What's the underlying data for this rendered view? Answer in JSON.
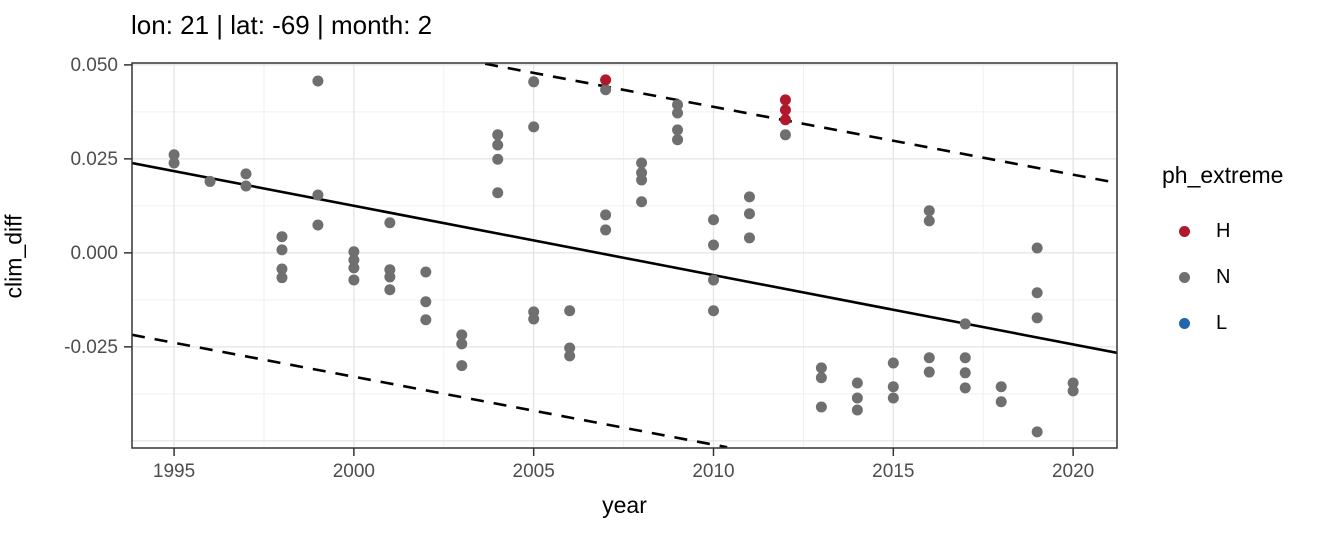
{
  "chart_data": {
    "type": "scatter",
    "title": "lon: 21 | lat: -69 | month: 2",
    "xlabel": "year",
    "ylabel": "clim_diff",
    "xlim": [
      1993.83,
      2021.22
    ],
    "ylim": [
      -0.0519,
      0.0505
    ],
    "x_ticks": [
      1995,
      2000,
      2005,
      2010,
      2015,
      2020
    ],
    "x_minor_ticks": [
      1997.5,
      2002.5,
      2007.5,
      2012.5,
      2017.5
    ],
    "y_ticks": [
      0.05,
      0.025,
      0.0,
      -0.025
    ],
    "y_tick_labels": [
      "0.050",
      "0.025",
      "0.000",
      "-0.025"
    ],
    "y_grid_major": [
      0.05,
      0.025,
      0.0,
      -0.025,
      -0.05
    ],
    "y_grid_minor": [
      0.0375,
      0.0125,
      -0.0125,
      -0.0375
    ],
    "grid": "on",
    "colors": {
      "H": "#B2182B",
      "N": "#6F6F6F",
      "L": "#2166AC",
      "axis_text": "#4D4D4D",
      "panel_border": "#333333",
      "grid_major": "#E4E4E4",
      "grid_minor": "#F1F1F1",
      "line": "#000000"
    },
    "legend": {
      "title": "ph_extreme",
      "position": "right",
      "entries": [
        {
          "label": "H",
          "color": "#B2182B"
        },
        {
          "label": "N",
          "color": "#6F6F6F"
        },
        {
          "label": "L",
          "color": "#2166AC"
        }
      ]
    },
    "series": [
      {
        "name": "H",
        "color": "#B2182B",
        "points": [
          [
            2007,
            0.046
          ],
          [
            2012,
            0.0407
          ],
          [
            2012,
            0.038
          ],
          [
            2012,
            0.0354
          ]
        ]
      },
      {
        "name": "N",
        "color": "#6F6F6F",
        "points": [
          [
            1995,
            0.0261
          ],
          [
            1995,
            0.0239
          ],
          [
            1996,
            0.019
          ],
          [
            1997,
            0.021
          ],
          [
            1997,
            0.0178
          ],
          [
            1998,
            0.0043
          ],
          [
            1998,
            0.0008
          ],
          [
            1998,
            -0.0043
          ],
          [
            1998,
            -0.0066
          ],
          [
            1999,
            0.0457
          ],
          [
            1999,
            0.0154
          ],
          [
            1999,
            0.0074
          ],
          [
            2000,
            0.0003
          ],
          [
            2000,
            -0.0019
          ],
          [
            2000,
            -0.004
          ],
          [
            2000,
            -0.0072
          ],
          [
            2001,
            0.008
          ],
          [
            2001,
            -0.0045
          ],
          [
            2001,
            -0.0064
          ],
          [
            2001,
            -0.0098
          ],
          [
            2002,
            -0.0051
          ],
          [
            2002,
            -0.013
          ],
          [
            2002,
            -0.0178
          ],
          [
            2003,
            -0.0218
          ],
          [
            2003,
            -0.0242
          ],
          [
            2003,
            -0.03
          ],
          [
            2004,
            0.0314
          ],
          [
            2004,
            0.0287
          ],
          [
            2004,
            0.0249
          ],
          [
            2004,
            0.016
          ],
          [
            2005,
            0.0455
          ],
          [
            2005,
            0.0335
          ],
          [
            2005,
            -0.0157
          ],
          [
            2005,
            -0.0176
          ],
          [
            2006,
            -0.0154
          ],
          [
            2006,
            -0.0253
          ],
          [
            2006,
            -0.0274
          ],
          [
            2007,
            0.0434
          ],
          [
            2007,
            0.0101
          ],
          [
            2007,
            0.0061
          ],
          [
            2008,
            0.0239
          ],
          [
            2008,
            0.0213
          ],
          [
            2008,
            0.0194
          ],
          [
            2008,
            0.0136
          ],
          [
            2009,
            0.0394
          ],
          [
            2009,
            0.0372
          ],
          [
            2009,
            0.0327
          ],
          [
            2009,
            0.0301
          ],
          [
            2010,
            0.0088
          ],
          [
            2010,
            0.0021
          ],
          [
            2010,
            -0.0072
          ],
          [
            2010,
            -0.0154
          ],
          [
            2011,
            0.0149
          ],
          [
            2011,
            0.0104
          ],
          [
            2011,
            0.004
          ],
          [
            2012,
            0.0314
          ],
          [
            2013,
            -0.0306
          ],
          [
            2013,
            -0.0332
          ],
          [
            2013,
            -0.041
          ],
          [
            2014,
            -0.0346
          ],
          [
            2014,
            -0.0386
          ],
          [
            2014,
            -0.0418
          ],
          [
            2015,
            -0.0293
          ],
          [
            2015,
            -0.0356
          ],
          [
            2015,
            -0.0386
          ],
          [
            2016,
            0.0112
          ],
          [
            2016,
            0.0085
          ],
          [
            2016,
            -0.0279
          ],
          [
            2016,
            -0.0317
          ],
          [
            2017,
            -0.0189
          ],
          [
            2017,
            -0.0279
          ],
          [
            2017,
            -0.0319
          ],
          [
            2017,
            -0.0359
          ],
          [
            2018,
            -0.0356
          ],
          [
            2018,
            -0.0396
          ],
          [
            2019,
            0.0013
          ],
          [
            2019,
            -0.0106
          ],
          [
            2019,
            -0.0173
          ],
          [
            2019,
            -0.0476
          ],
          [
            2020,
            -0.0346
          ],
          [
            2020,
            -0.0367
          ]
        ]
      },
      {
        "name": "L",
        "color": "#2166AC",
        "points": []
      }
    ],
    "lines": [
      {
        "name": "trend-line",
        "style": "solid",
        "x1": 1993.83,
        "y1": 0.0239,
        "x2": 2021.22,
        "y2": -0.0266
      },
      {
        "name": "upper-interval",
        "style": "dashed",
        "x1": 2003.65,
        "y1": 0.0503,
        "x2": 2021.22,
        "y2": 0.0186
      },
      {
        "name": "lower-interval",
        "style": "dashed",
        "x1": 1993.83,
        "y1": -0.0218,
        "x2": 2010.38,
        "y2": -0.0517
      }
    ]
  }
}
